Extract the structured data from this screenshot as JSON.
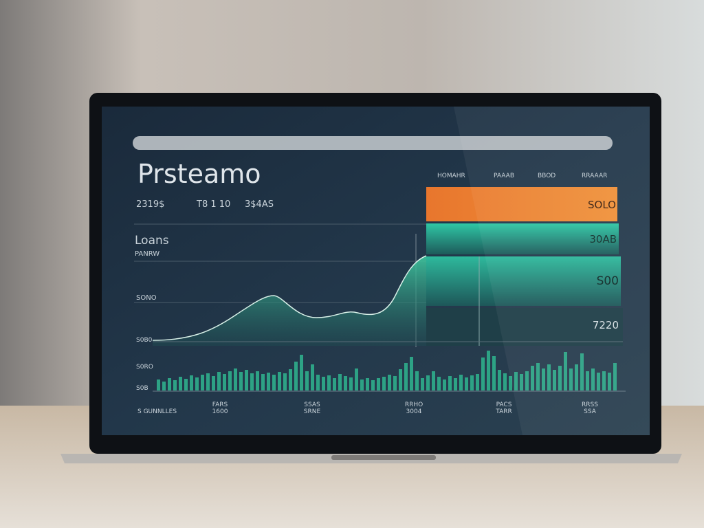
{
  "header": {
    "title": "Prsteamo",
    "stats": [
      "2319$",
      "T8 1 10",
      "3$4AS"
    ]
  },
  "columns": [
    "HOMAHR",
    "PAAAB",
    "BBOD",
    "RRAAAR"
  ],
  "panels": [
    {
      "label": "SOLO"
    },
    {
      "label": "30AB"
    },
    {
      "label": "S00"
    },
    {
      "label": "7220"
    }
  ],
  "chart": {
    "title": "Loans",
    "subtitle": "PANRW",
    "axis_labels": [
      "SONO",
      "S0B0",
      "S0RO",
      "S0B"
    ]
  },
  "footer": [
    {
      "top": "",
      "bottom": "S GUNNLLES"
    },
    {
      "top": "FARS",
      "bottom": "1600"
    },
    {
      "top": "SSAS",
      "bottom": "SRNE"
    },
    {
      "top": "RRHO",
      "bottom": "3004"
    },
    {
      "top": "PACS",
      "bottom": "TARR"
    },
    {
      "top": "RRSS",
      "bottom": "SSA"
    }
  ]
}
